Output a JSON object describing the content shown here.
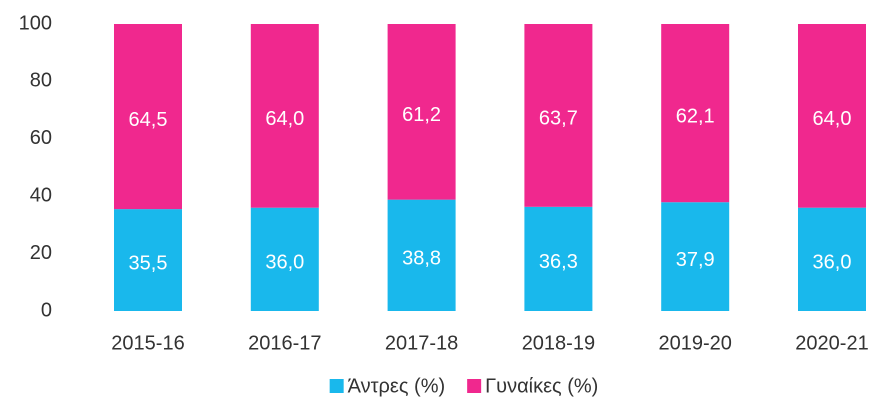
{
  "chart_data": {
    "type": "stacked_bar",
    "categories": [
      "2015-16",
      "2016-17",
      "2017-18",
      "2018-19",
      "2019-20",
      "2020-21"
    ],
    "series": [
      {
        "name": "Άντρες (%)",
        "color": "#19b8ec",
        "values": [
          35.5,
          36.0,
          38.8,
          36.3,
          37.9,
          36.0
        ],
        "value_labels": [
          "35,5",
          "36,0",
          "38,8",
          "36,3",
          "37,9",
          "36,0"
        ]
      },
      {
        "name": "Γυναίκες (%)",
        "color": "#f0288e",
        "values": [
          64.5,
          64.0,
          61.2,
          63.7,
          62.1,
          64.0
        ],
        "value_labels": [
          "64,5",
          "64,0",
          "61,2",
          "63,7",
          "62,1",
          "64,0"
        ]
      }
    ],
    "ylim": [
      0,
      100
    ],
    "yticks": [
      0,
      20,
      40,
      60,
      80,
      100
    ],
    "grid": false,
    "legend": "bottom"
  }
}
